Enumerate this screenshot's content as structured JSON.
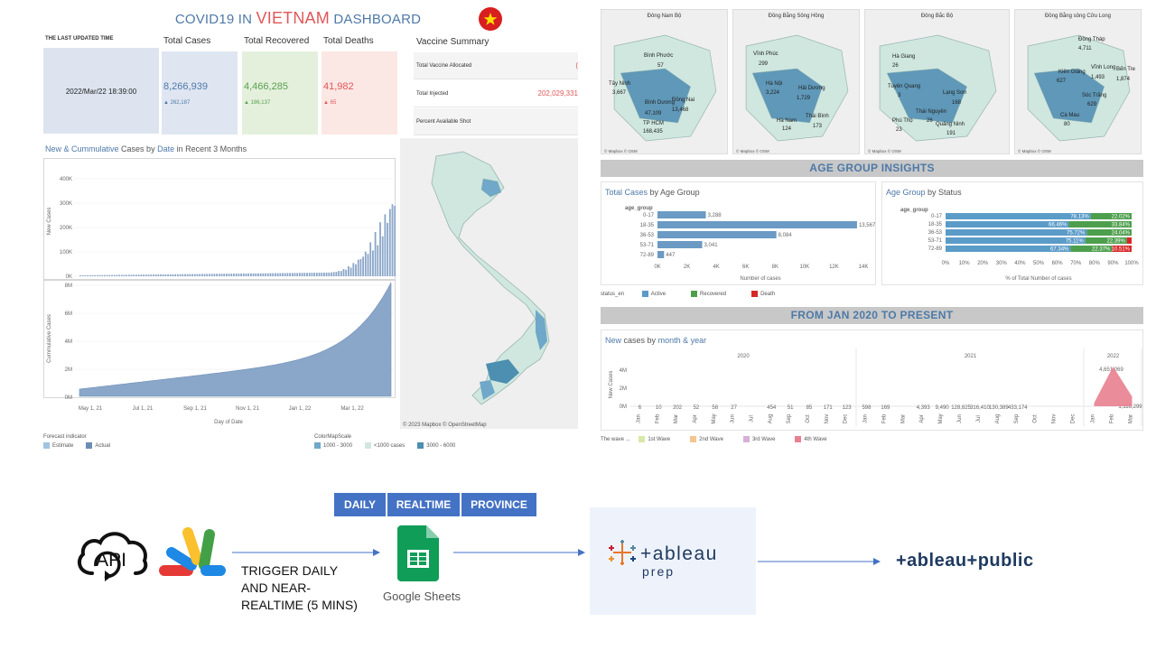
{
  "dashboard": {
    "title_prefix": "COVID19 IN",
    "title_highlight": "VIETNAM",
    "title_suffix": "DASHBOARD",
    "last_updated_label": "THE LAST UPDATED TIME",
    "last_updated_value": "2022/Mar/22 18:39:00",
    "kpis": [
      {
        "label": "Total Cases",
        "value": "8,266,939",
        "delta": "▲ 262,187",
        "color": "#4e79a7",
        "bg": "#dfe6f2"
      },
      {
        "label": "Total Recovered",
        "value": "4,466,285",
        "delta": "▲ 186,137",
        "color": "#59a14f",
        "bg": "#e4f0dc"
      },
      {
        "label": "Total Deaths",
        "value": "41,982",
        "delta": "▲ 65",
        "color": "#e15759",
        "bg": "#fbe7e4"
      }
    ],
    "vaccine": {
      "title": "Vaccine Summary",
      "rows": [
        {
          "label": "Total Vaccine Allocated",
          "value": "("
        },
        {
          "label": "Total Injected",
          "value": "202,029,331"
        },
        {
          "label": "Percent Available Shot",
          "value": ""
        }
      ]
    },
    "trend_chart": {
      "title_a": "New & Cummulative",
      "title_b": "Cases by",
      "title_c": "Date",
      "title_d": "in Recent 3 Months",
      "top_ylabel": "New Cases",
      "top_ticks": [
        "400K",
        "300K",
        "200K",
        "100K",
        "0K"
      ],
      "bottom_ylabel": "Cummulative Cases",
      "bottom_ticks": [
        "8M",
        "6M",
        "4M",
        "2M",
        "0M"
      ],
      "x_ticks": [
        "May 1, 21",
        "Jul 1, 21",
        "Sep 1, 21",
        "Nov 1, 21",
        "Jan 1, 22",
        "Mar 1, 22"
      ],
      "xlabel": "Day of Date"
    },
    "forecast_legend": {
      "title": "Forecast indicator",
      "items": [
        {
          "label": "Estimate",
          "color": "#a0c4e0"
        },
        {
          "label": "Actual",
          "color": "#6b8db5"
        }
      ]
    },
    "colormap_legend": {
      "title": "ColorMapScale",
      "items": [
        {
          "label": "1000 - 3000",
          "color": "#6fa8c8"
        },
        {
          "label": "<1000 cases",
          "color": "#cfe7df"
        },
        {
          "label": "3000 - 6000",
          "color": "#4c8fb0"
        }
      ]
    },
    "map_credit": "© 2023 Mapbox  © OpenStreetMap"
  },
  "regions": [
    {
      "title": "Đông Nam Bộ",
      "labels": [
        {
          "t": "Bình Phước"
        },
        {
          "t": "57"
        },
        {
          "t": "Tây Ninh"
        },
        {
          "t": "3,667"
        },
        {
          "t": "Bình Dương"
        },
        {
          "t": "47,109"
        },
        {
          "t": "Đồng Nai"
        },
        {
          "t": "13,468"
        },
        {
          "t": "TP HCM"
        },
        {
          "t": "168,435"
        }
      ]
    },
    {
      "title": "Đồng Bằng Sông Hồng",
      "labels": [
        {
          "t": "Vĩnh Phúc"
        },
        {
          "t": "299"
        },
        {
          "t": "Hà Nội"
        },
        {
          "t": "3,224"
        },
        {
          "t": "Hải Dương"
        },
        {
          "t": "1,729"
        },
        {
          "t": "Hà Nam"
        },
        {
          "t": "124"
        },
        {
          "t": "Thái Bình"
        },
        {
          "t": "173"
        }
      ]
    },
    {
      "title": "Đông Bắc Bộ",
      "labels": [
        {
          "t": "Hà Giang"
        },
        {
          "t": "26"
        },
        {
          "t": "Tuyên Quang"
        },
        {
          "t": "3"
        },
        {
          "t": "Lạng Sơn"
        },
        {
          "t": "168"
        },
        {
          "t": "Thái Nguyên"
        },
        {
          "t": "26"
        },
        {
          "t": "Phú Thọ"
        },
        {
          "t": "23"
        },
        {
          "t": "Quảng Ninh"
        },
        {
          "t": "191"
        }
      ]
    },
    {
      "title": "Đồng Bằng sông Cửu Long",
      "labels": [
        {
          "t": "Đồng Tháp"
        },
        {
          "t": "4,711"
        },
        {
          "t": "Vĩnh Long"
        },
        {
          "t": "1,493"
        },
        {
          "t": "Kiên Giang"
        },
        {
          "t": "627"
        },
        {
          "t": "Bến Tre"
        },
        {
          "t": "1,874"
        },
        {
          "t": "Sóc Trăng"
        },
        {
          "t": "629"
        },
        {
          "t": "Cà Mau"
        },
        {
          "t": "80"
        }
      ]
    }
  ],
  "mapbox_credit": "© Mapbox  © OSM",
  "age_section_title": "AGE GROUP INSIGHTS",
  "history_section_title": "FROM JAN 2020 TO PRESENT",
  "chart_data": [
    {
      "type": "bar",
      "title_a": "Total Cases",
      "title_b": "by Age Group",
      "row_label": "age_group",
      "categories": [
        "0-17",
        "18-35",
        "36-53",
        "53-71",
        "72-89"
      ],
      "values": [
        3288,
        13567,
        8084,
        3041,
        447
      ],
      "value_labels": [
        "3,288",
        "13,567",
        "8,084",
        "3,041",
        "447"
      ],
      "x_ticks": [
        "0K",
        "2K",
        "4K",
        "6K",
        "8K",
        "10K",
        "12K",
        "14K"
      ],
      "xlim": [
        0,
        14000
      ],
      "xlabel": "Number of cases",
      "color": "#6b9ac4"
    },
    {
      "type": "bar",
      "title_a": "Age Group",
      "title_b": "by Status",
      "row_label": "age_group",
      "categories": [
        "0-17",
        "18-35",
        "36-53",
        "53-71",
        "72-89"
      ],
      "series": [
        {
          "name": "Active",
          "values": [
            78.13,
            66.46,
            75.72,
            75.11,
            67.34
          ],
          "labels": [
            "78.13%",
            "66.46%",
            "75.72%",
            "75.11%",
            "67.34%"
          ],
          "color": "#5b9bc8"
        },
        {
          "name": "Recovered",
          "values": [
            22.02,
            33.84,
            24.04,
            22.39,
            22.37
          ],
          "labels": [
            "22.02%",
            "33.84%",
            "24.04%",
            "22.39%",
            "22.37%"
          ],
          "color": "#4d9f4d"
        },
        {
          "name": "Death",
          "values": [
            0,
            0,
            0,
            2.5,
            10.51
          ],
          "labels": [
            "",
            "",
            "",
            "",
            "10.51%"
          ],
          "color": "#d62728"
        }
      ],
      "x_ticks": [
        "0%",
        "10%",
        "20%",
        "30%",
        "40%",
        "50%",
        "60%",
        "70%",
        "80%",
        "90%",
        "100%"
      ],
      "xlim": [
        0,
        100
      ],
      "xlabel": "% of Total Number of cases",
      "legend_title": "status_en"
    },
    {
      "type": "area",
      "title_a": "New",
      "title_b": "cases by",
      "title_c": "month & year",
      "ylabel": "New Cases",
      "y_ticks": [
        "4M",
        "2M",
        "0M"
      ],
      "years": [
        "2020",
        "2021",
        "2022"
      ],
      "months_2020": [
        "Jan",
        "Feb",
        "Mar",
        "Apr",
        "May",
        "Jun",
        "Jul",
        "Aug",
        "Sep",
        "Oct",
        "Nov",
        "Dec"
      ],
      "months_2021": [
        "Jan",
        "Feb",
        "Mar",
        "Apr",
        "May",
        "Jun",
        "Jul",
        "Aug",
        "Sep",
        "Oct",
        "Nov",
        "Dec"
      ],
      "months_2022": [
        "Jan",
        "Feb",
        "Mar"
      ],
      "values_2020": [
        "6",
        "10",
        "202",
        "52",
        "58",
        "27",
        "",
        "454",
        "51",
        "85",
        "171",
        "123"
      ],
      "values_2021": [
        "598",
        "169",
        "",
        "4,393",
        "9,490",
        "128,825",
        "316,410",
        "130,389",
        "433,174",
        "",
        "",
        ""
      ],
      "values_2022": [
        "",
        "4,651,069",
        "1,118,299"
      ],
      "series_values_2022": [
        400000,
        4651069,
        1118299
      ],
      "legend_title": "The wave ...",
      "legend": [
        {
          "label": "1st Wave",
          "color": "#d7e8a8"
        },
        {
          "label": "2nd Wave",
          "color": "#f6c58f"
        },
        {
          "label": "3rd Wave",
          "color": "#d6b0d8"
        },
        {
          "label": "4th Wave",
          "color": "#e8808f"
        }
      ]
    }
  ],
  "pipeline": {
    "tabs": [
      "DAILY",
      "REALTIME",
      "PROVINCE"
    ],
    "api_label": "API",
    "trigger_text": "TRIGGER DAILY AND NEAR-REALTIME (5 MINS)",
    "google_sheets_label": "Google Sheets",
    "tableau_prep_brand": "+ableau",
    "tableau_prep_sub": "prep",
    "tableau_public_label": "+ableau+public"
  }
}
